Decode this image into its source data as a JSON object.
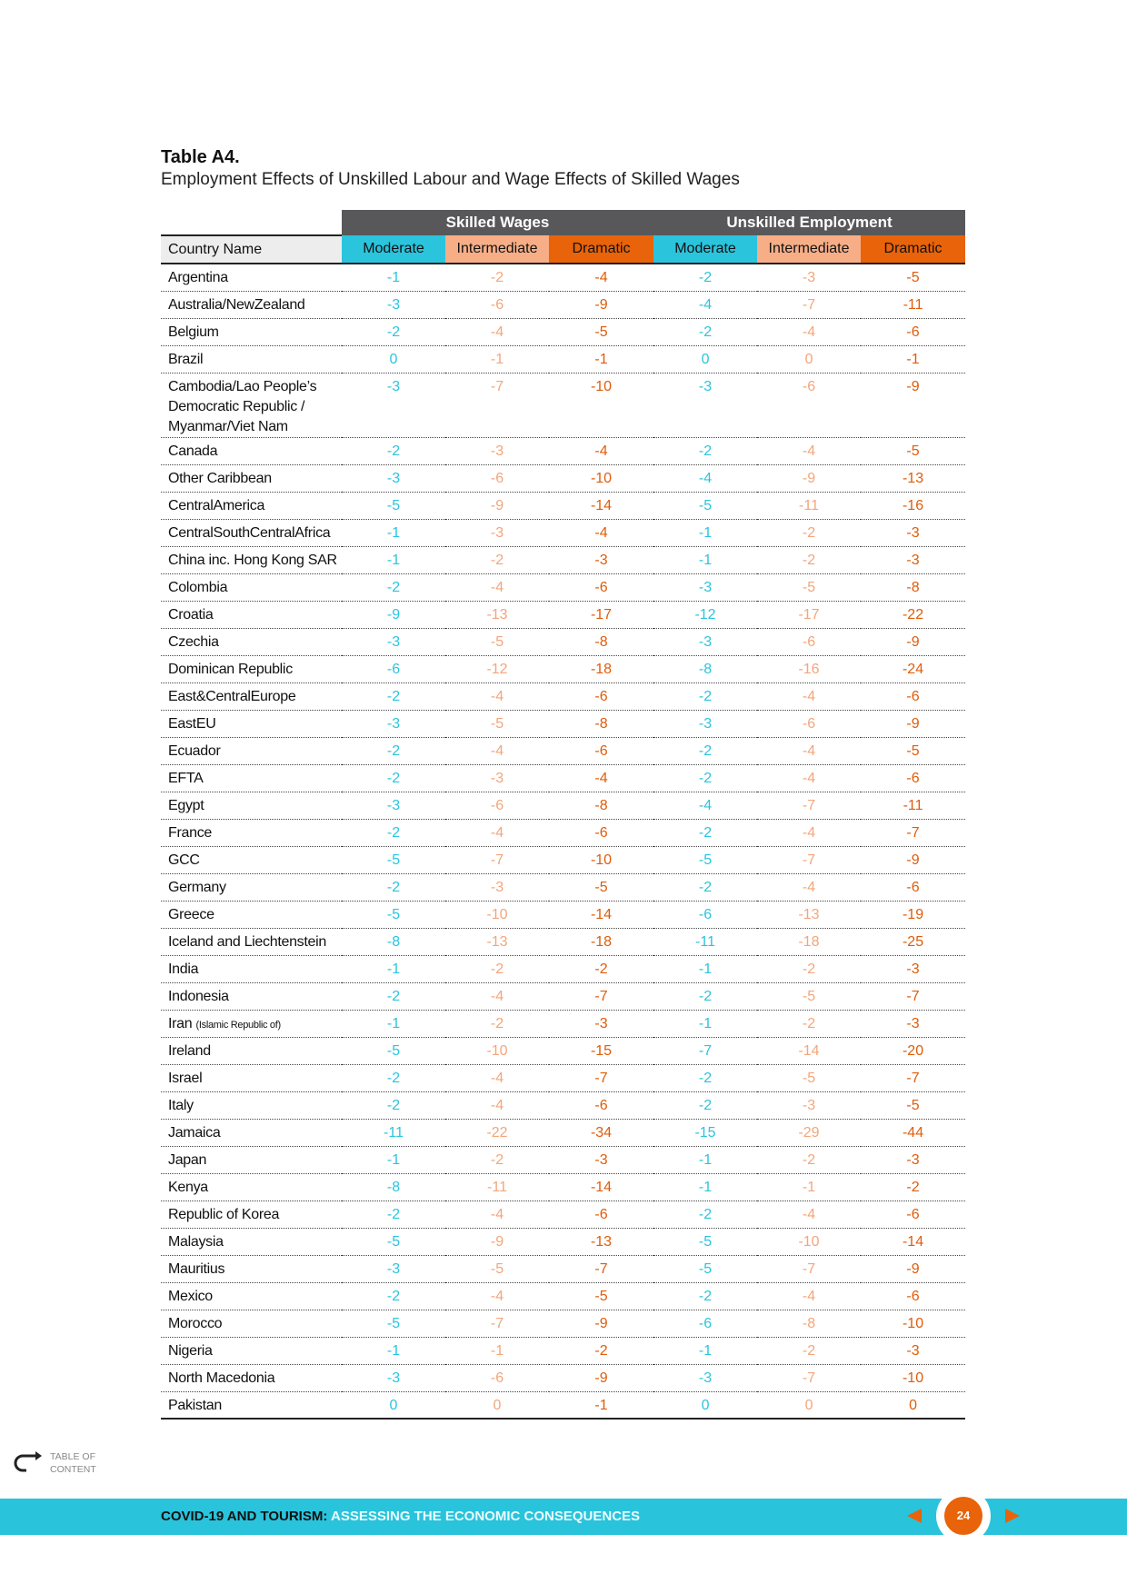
{
  "header": {
    "title": "Table A4.",
    "subtitle": "Employment Effects of Unskilled Labour and Wage Effects of Skilled Wages"
  },
  "table": {
    "groups": [
      "Skilled Wages",
      "Unskilled Employment"
    ],
    "columns": [
      "Country Name",
      "Moderate",
      "Intermediate",
      "Dramatic",
      "Moderate",
      "Intermediate",
      "Dramatic"
    ],
    "rows": [
      {
        "name": "Argentina",
        "values": [
          -1,
          -2,
          -4,
          -2,
          -3,
          -5
        ]
      },
      {
        "name": "Australia/NewZealand",
        "values": [
          -3,
          -6,
          -9,
          -4,
          -7,
          -11
        ]
      },
      {
        "name": "Belgium",
        "values": [
          -2,
          -4,
          -5,
          -2,
          -4,
          -6
        ]
      },
      {
        "name": "Brazil",
        "values": [
          0,
          -1,
          -1,
          0,
          0,
          -1
        ]
      },
      {
        "name": "Cambodia/Lao People’s Democratic Republic / Myanmar/Viet Nam",
        "values": [
          -3,
          -7,
          -10,
          -3,
          -6,
          -9
        ]
      },
      {
        "name": "Canada",
        "values": [
          -2,
          -3,
          -4,
          -2,
          -4,
          -5
        ]
      },
      {
        "name": "Other Caribbean",
        "values": [
          -3,
          -6,
          -10,
          -4,
          -9,
          -13
        ]
      },
      {
        "name": "CentralAmerica",
        "values": [
          -5,
          -9,
          -14,
          -5,
          -11,
          -16
        ]
      },
      {
        "name": "CentralSouthCentralAfrica",
        "values": [
          -1,
          -3,
          -4,
          -1,
          -2,
          -3
        ]
      },
      {
        "name": "China inc. Hong Kong SAR",
        "values": [
          -1,
          -2,
          -3,
          -1,
          -2,
          -3
        ]
      },
      {
        "name": "Colombia",
        "values": [
          -2,
          -4,
          -6,
          -3,
          -5,
          -8
        ]
      },
      {
        "name": "Croatia",
        "values": [
          -9,
          -13,
          -17,
          -12,
          -17,
          -22
        ]
      },
      {
        "name": "Czechia",
        "values": [
          -3,
          -5,
          -8,
          -3,
          -6,
          -9
        ]
      },
      {
        "name": "Dominican Republic",
        "values": [
          -6,
          -12,
          -18,
          -8,
          -16,
          -24
        ]
      },
      {
        "name": "East&CentralEurope",
        "values": [
          -2,
          -4,
          -6,
          -2,
          -4,
          -6
        ]
      },
      {
        "name": "EastEU",
        "values": [
          -3,
          -5,
          -8,
          -3,
          -6,
          -9
        ]
      },
      {
        "name": "Ecuador",
        "values": [
          -2,
          -4,
          -6,
          -2,
          -4,
          -5
        ]
      },
      {
        "name": "EFTA",
        "values": [
          -2,
          -3,
          -4,
          -2,
          -4,
          -6
        ]
      },
      {
        "name": "Egypt",
        "values": [
          -3,
          -6,
          -8,
          -4,
          -7,
          -11
        ]
      },
      {
        "name": "France",
        "values": [
          -2,
          -4,
          -6,
          -2,
          -4,
          -7
        ]
      },
      {
        "name": "GCC",
        "values": [
          -5,
          -7,
          -10,
          -5,
          -7,
          -9
        ]
      },
      {
        "name": "Germany",
        "values": [
          -2,
          -3,
          -5,
          -2,
          -4,
          -6
        ]
      },
      {
        "name": "Greece",
        "values": [
          -5,
          -10,
          -14,
          -6,
          -13,
          -19
        ]
      },
      {
        "name": "Iceland and Liechtenstein",
        "values": [
          -8,
          -13,
          -18,
          -11,
          -18,
          -25
        ]
      },
      {
        "name": "India",
        "values": [
          -1,
          -2,
          -2,
          -1,
          -2,
          -3
        ]
      },
      {
        "name": "Indonesia",
        "values": [
          -2,
          -4,
          -7,
          -2,
          -5,
          -7
        ]
      },
      {
        "name": "Iran",
        "note": "(Islamic Republic of)",
        "values": [
          -1,
          -2,
          -3,
          -1,
          -2,
          -3
        ]
      },
      {
        "name": "Ireland",
        "values": [
          -5,
          -10,
          -15,
          -7,
          -14,
          -20
        ]
      },
      {
        "name": "Israel",
        "values": [
          -2,
          -4,
          -7,
          -2,
          -5,
          -7
        ]
      },
      {
        "name": "Italy",
        "values": [
          -2,
          -4,
          -6,
          -2,
          -3,
          -5
        ]
      },
      {
        "name": "Jamaica",
        "values": [
          -11,
          -22,
          -34,
          -15,
          -29,
          -44
        ]
      },
      {
        "name": "Japan",
        "values": [
          -1,
          -2,
          -3,
          -1,
          -2,
          -3
        ]
      },
      {
        "name": "Kenya",
        "values": [
          -8,
          -11,
          -14,
          -1,
          -1,
          -2
        ]
      },
      {
        "name": "Republic of Korea",
        "values": [
          -2,
          -4,
          -6,
          -2,
          -4,
          -6
        ]
      },
      {
        "name": "Malaysia",
        "values": [
          -5,
          -9,
          -13,
          -5,
          -10,
          -14
        ]
      },
      {
        "name": "Mauritius",
        "values": [
          -3,
          -5,
          -7,
          -5,
          -7,
          -9
        ]
      },
      {
        "name": "Mexico",
        "values": [
          -2,
          -4,
          -5,
          -2,
          -4,
          -6
        ]
      },
      {
        "name": "Morocco",
        "values": [
          -5,
          -7,
          -9,
          -6,
          -8,
          -10
        ]
      },
      {
        "name": "Nigeria",
        "values": [
          -1,
          -1,
          -2,
          -1,
          -2,
          -3
        ]
      },
      {
        "name": "North Macedonia",
        "values": [
          -3,
          -6,
          -9,
          -3,
          -7,
          -10
        ]
      },
      {
        "name": "Pakistan",
        "values": [
          0,
          0,
          -1,
          0,
          0,
          0
        ]
      }
    ]
  },
  "footer": {
    "toc": "TABLE OF CONTENT",
    "series": "COVID-19 AND TOURISM:",
    "subtitle": "ASSESSING THE ECONOMIC CONSEQUENCES",
    "page": "24"
  }
}
